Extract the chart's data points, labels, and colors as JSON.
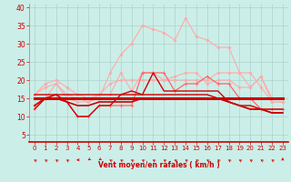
{
  "xlabel": "Vent moyen/en rafales ( km/h )",
  "xlim": [
    -0.5,
    23.5
  ],
  "ylim": [
    3,
    41
  ],
  "yticks": [
    5,
    10,
    15,
    20,
    25,
    30,
    35,
    40
  ],
  "xticks": [
    0,
    1,
    2,
    3,
    4,
    5,
    6,
    7,
    8,
    9,
    10,
    11,
    12,
    13,
    14,
    15,
    16,
    17,
    18,
    19,
    20,
    21,
    22,
    23
  ],
  "bg_color": "#cceee8",
  "grid_color": "#aad4ce",
  "series": [
    {
      "y": [
        16,
        19,
        20,
        18,
        16,
        15,
        16,
        19,
        20,
        20,
        20,
        20,
        20,
        20,
        20,
        20,
        20,
        22,
        22,
        22,
        18,
        21,
        14,
        14
      ],
      "color": "#ffaaaa",
      "lw": 0.8,
      "marker": "D",
      "ms": 1.5,
      "zorder": 3
    },
    {
      "y": [
        16,
        18,
        19,
        15,
        14,
        14,
        15,
        22,
        27,
        30,
        35,
        34,
        33,
        31,
        37,
        32,
        31,
        29,
        29,
        22,
        22,
        18,
        14,
        14
      ],
      "color": "#ffaaaa",
      "lw": 0.8,
      "marker": "D",
      "ms": 1.5,
      "zorder": 3
    },
    {
      "y": [
        12,
        15,
        19,
        16,
        15,
        14,
        16,
        16,
        22,
        17,
        22,
        22,
        20,
        21,
        22,
        22,
        19,
        20,
        20,
        18,
        18,
        21,
        15,
        15
      ],
      "color": "#ffaaaa",
      "lw": 0.8,
      "marker": "D",
      "ms": 1.5,
      "zorder": 3
    },
    {
      "y": [
        13,
        15,
        16,
        14,
        10,
        10,
        13,
        13,
        13,
        13,
        22,
        22,
        22,
        17,
        19,
        19,
        21,
        19,
        19,
        15,
        15,
        12,
        12,
        12
      ],
      "color": "#ff6666",
      "lw": 0.9,
      "marker": "+",
      "ms": 3,
      "zorder": 4
    },
    {
      "y": [
        16,
        16,
        16,
        16,
        16,
        16,
        16,
        16,
        16,
        16,
        16,
        16,
        16,
        16,
        16,
        16,
        16,
        15,
        14,
        13,
        12,
        12,
        11,
        11
      ],
      "color": "#cc0000",
      "lw": 1.0,
      "marker": null,
      "ms": 0,
      "zorder": 5
    },
    {
      "y": [
        12,
        15,
        16,
        14,
        10,
        10,
        13,
        13,
        16,
        17,
        16,
        22,
        17,
        17,
        17,
        17,
        17,
        17,
        14,
        13,
        13,
        12,
        12,
        12
      ],
      "color": "#cc0000",
      "lw": 1.0,
      "marker": null,
      "ms": 0,
      "zorder": 5
    },
    {
      "y": [
        15,
        15,
        15,
        15,
        15,
        15,
        15,
        15,
        15,
        15,
        15,
        15,
        15,
        15,
        15,
        15,
        15,
        15,
        15,
        15,
        15,
        15,
        15,
        15
      ],
      "color": "#cc0000",
      "lw": 2.2,
      "marker": null,
      "ms": 0,
      "zorder": 6
    },
    {
      "y": [
        13,
        15,
        15,
        14,
        13,
        13,
        14,
        14,
        14,
        14,
        15,
        15,
        15,
        15,
        15,
        15,
        15,
        15,
        14,
        13,
        12,
        12,
        11,
        11
      ],
      "color": "#cc0000",
      "lw": 1.2,
      "marker": null,
      "ms": 0,
      "zorder": 5
    }
  ],
  "arrow_angles": [
    225,
    225,
    225,
    225,
    270,
    315,
    315,
    225,
    225,
    225,
    225,
    225,
    225,
    225,
    225,
    225,
    225,
    225,
    225,
    225,
    225,
    225,
    225,
    180
  ]
}
